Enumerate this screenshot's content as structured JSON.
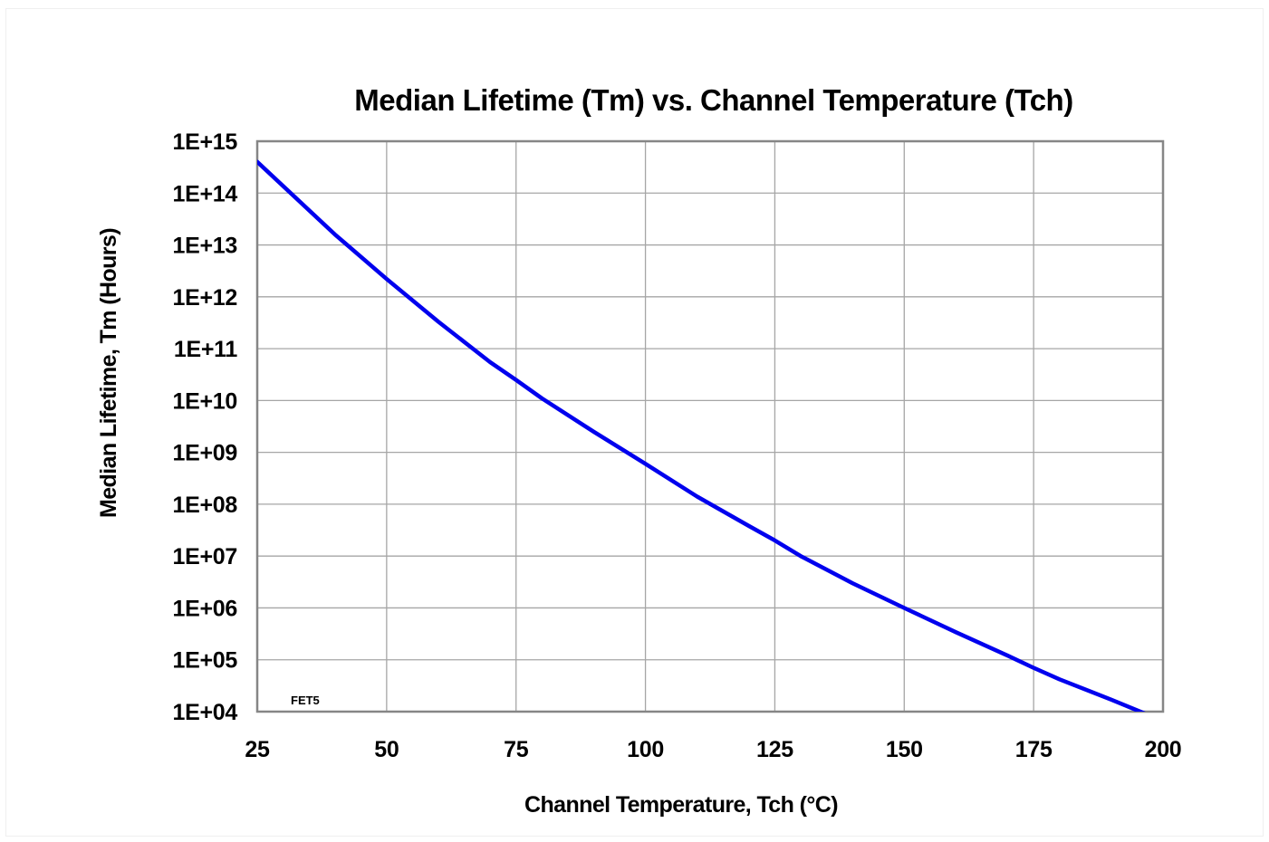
{
  "chart_data": {
    "type": "line",
    "title": "Median Lifetime (Tm) vs. Channel Temperature (Tch)",
    "xlabel": "Channel Temperature, Tch  (°C)",
    "ylabel": "Median Lifetime, Tm  (Hours)",
    "xlim": [
      25,
      200
    ],
    "ylim": [
      10000,
      1000000000000000
    ],
    "y_scale": "log",
    "grid": true,
    "x_ticks": [
      "25",
      "50",
      "75",
      "100",
      "125",
      "150",
      "175",
      "200"
    ],
    "y_ticks": [
      "1E+15",
      "1E+14",
      "1E+13",
      "1E+12",
      "1E+11",
      "1E+10",
      "1E+09",
      "1E+08",
      "1E+07",
      "1E+06",
      "1E+05",
      "1E+04"
    ],
    "annotation": "FET5",
    "series": [
      {
        "color": "#0000ee",
        "x": [
          25,
          40,
          50,
          60,
          70,
          75,
          80,
          90,
          100,
          110,
          120,
          125,
          130,
          140,
          150,
          160,
          170,
          175,
          180,
          190,
          198
        ],
        "y": [
          400000000000000.0,
          16000000000000.0,
          2200000000000.0,
          330000000000.0,
          55000000000.0,
          25000000000.0,
          11000000000.0,
          2500000000.0,
          600000000.0,
          140000000.0,
          38000000.0,
          20000000.0,
          10000000.0,
          3000000.0,
          1000000.0,
          340000.0,
          120000.0,
          70000.0,
          42000.0,
          17000.0,
          8000.0
        ]
      }
    ]
  }
}
